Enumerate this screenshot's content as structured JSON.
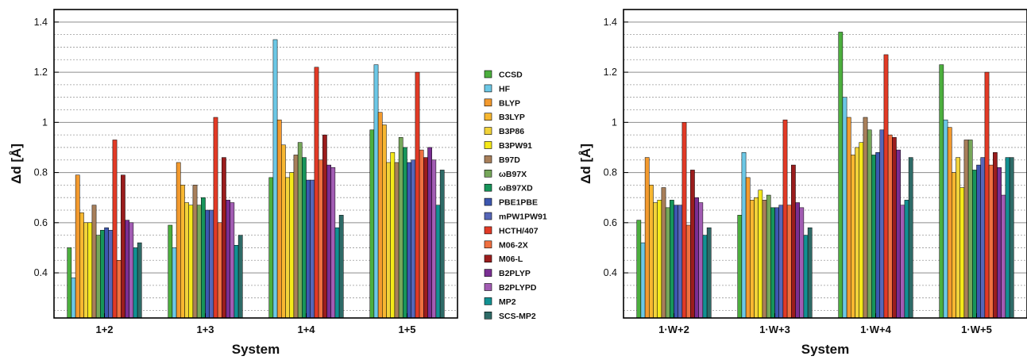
{
  "chart_data": {
    "type": "bar",
    "series_names": [
      "CCSD",
      "HF",
      "BLYP",
      "B3LYP",
      "B3P86",
      "B3PW91",
      "B97D",
      "ωB97X",
      "ωB97XD",
      "PBE1PBE",
      "mPW1PW91",
      "HCTH/407",
      "M06-2X",
      "M06-L",
      "B2PLYP",
      "B2PLYPD",
      "MP2",
      "SCS-MP2"
    ],
    "series_colors": [
      "#4caf3e",
      "#6cc8e6",
      "#f39a2e",
      "#f7b731",
      "#f2d33a",
      "#f5e91a",
      "#a87f5a",
      "#76a75a",
      "#17955a",
      "#3d57b0",
      "#5666b8",
      "#e23a26",
      "#ef7040",
      "#9b1d1d",
      "#7a2f93",
      "#a25cb3",
      "#129192",
      "#2e6b67"
    ],
    "charts": [
      {
        "ylabel": "Δd [Å]",
        "xlabel": "System",
        "ylim": [
          0.22,
          1.45
        ],
        "yticks": [
          "0.4",
          "0.6",
          "0.8",
          "1",
          "1.2",
          "1.4"
        ],
        "categories": [
          "1+2",
          "1+3",
          "1+4",
          "1+5"
        ],
        "values": [
          [
            0.5,
            0.38,
            0.79,
            0.64,
            0.6,
            0.6,
            0.67,
            0.55,
            0.57,
            0.58,
            0.57,
            0.93,
            0.45,
            0.79,
            0.61,
            0.6,
            0.5,
            0.52
          ],
          [
            0.59,
            0.5,
            0.84,
            0.75,
            0.68,
            0.67,
            0.75,
            0.67,
            0.7,
            0.65,
            0.65,
            1.02,
            0.6,
            0.86,
            0.69,
            0.68,
            0.51,
            0.55
          ],
          [
            0.78,
            1.33,
            1.01,
            0.91,
            0.78,
            0.8,
            0.87,
            0.92,
            0.86,
            0.77,
            0.77,
            1.22,
            0.85,
            0.95,
            0.83,
            0.82,
            0.58,
            0.63
          ],
          [
            0.97,
            1.23,
            1.04,
            0.99,
            0.84,
            0.88,
            0.84,
            0.94,
            0.9,
            0.84,
            0.85,
            1.2,
            0.89,
            0.86,
            0.9,
            0.85,
            0.67,
            0.81
          ]
        ]
      },
      {
        "ylabel": "Δd [Å]",
        "xlabel": "System",
        "ylim": [
          0.22,
          1.45
        ],
        "yticks": [
          "0.4",
          "0.6",
          "0.8",
          "1",
          "1.2",
          "1.4"
        ],
        "categories": [
          "1·W+2",
          "1·W+3",
          "1·W+4",
          "1·W+5"
        ],
        "values": [
          [
            0.61,
            0.52,
            0.86,
            0.75,
            0.68,
            0.69,
            0.74,
            0.66,
            0.69,
            0.67,
            0.67,
            1.0,
            0.59,
            0.81,
            0.7,
            0.68,
            0.55,
            0.58
          ],
          [
            0.63,
            0.88,
            0.78,
            0.69,
            0.7,
            0.73,
            0.69,
            0.71,
            0.66,
            0.66,
            0.67,
            1.01,
            0.67,
            0.83,
            0.68,
            0.66,
            0.55,
            0.58
          ],
          [
            1.36,
            1.1,
            1.02,
            0.87,
            0.9,
            0.92,
            1.02,
            0.97,
            0.87,
            0.88,
            0.97,
            1.27,
            0.95,
            0.94,
            0.89,
            0.67,
            0.69,
            0.86
          ],
          [
            1.23,
            1.01,
            0.98,
            0.8,
            0.86,
            0.74,
            0.93,
            0.93,
            0.81,
            0.83,
            0.86,
            1.2,
            0.83,
            0.88,
            0.82,
            0.71,
            0.86,
            0.86
          ]
        ]
      }
    ]
  }
}
